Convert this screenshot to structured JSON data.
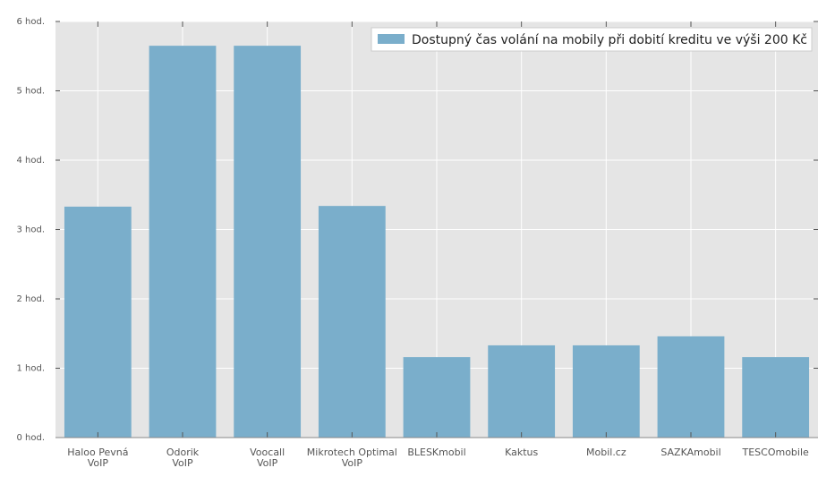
{
  "chart_data": {
    "type": "bar",
    "categories": [
      [
        "Haloo Pevná",
        "VoIP"
      ],
      [
        "Odorik",
        "VoIP"
      ],
      [
        "Voocall",
        "VoIP"
      ],
      [
        "Mikrotech Optimal",
        "VoIP"
      ],
      [
        "BLESKmobil"
      ],
      [
        "Kaktus"
      ],
      [
        "Mobil.cz"
      ],
      [
        "SAZKAmobil"
      ],
      [
        "TESCOmobile"
      ]
    ],
    "series": [
      {
        "name": "Dostupný čas volání na mobily při dobití kreditu ve výši 200 Kč",
        "values": [
          3.33,
          5.65,
          5.65,
          3.34,
          1.16,
          1.33,
          1.33,
          1.46,
          1.16
        ]
      }
    ],
    "yticks": [
      0,
      1,
      2,
      3,
      4,
      5,
      6
    ],
    "ytick_labels": [
      "0 hod.",
      "1 hod.",
      "2 hod.",
      "3 hod.",
      "4 hod.",
      "5 hod.",
      "6 hod."
    ],
    "ylim": [
      0,
      6
    ],
    "grid": true,
    "legend_position": "top-right",
    "colors": {
      "bar": "#7aaecb",
      "plot_bg": "#e5e5e5",
      "grid": "#ffffff"
    }
  }
}
